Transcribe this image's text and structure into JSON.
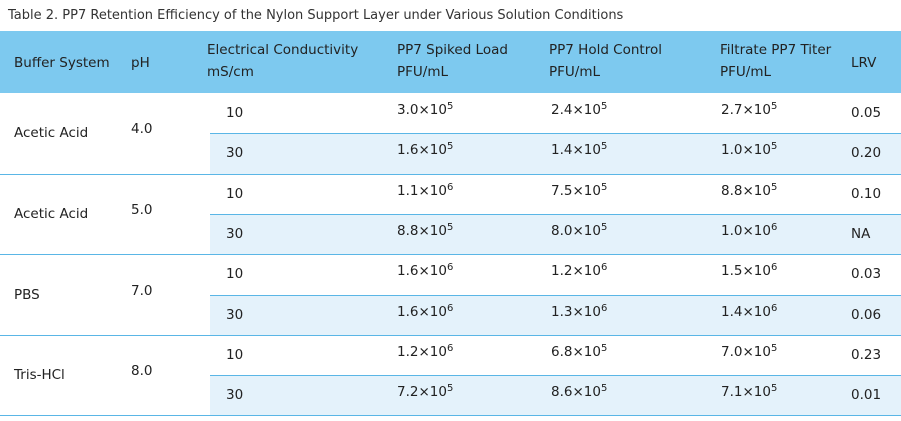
{
  "title": "Table 2. PP7 Retention Efficiency of the Nylon Support Layer under Various Solution Conditions",
  "table": {
    "header": [
      [
        "Buffer System"
      ],
      [
        "pH"
      ],
      [
        "Electrical Conductivity",
        "mS/cm"
      ],
      [
        "PP7 Spiked Load",
        "PFU/mL"
      ],
      [
        "PP7 Hold Control",
        "PFU/mL"
      ],
      [
        "Filtrate PP7 Titer",
        "PFU/mL"
      ],
      [
        "LRV"
      ]
    ],
    "groups": [
      {
        "buffer": "Acetic Acid",
        "ph": "4.0",
        "rows": [
          {
            "conductivity": "10",
            "spiked": {
              "base": "3.0×10",
              "exp": "5"
            },
            "hold": {
              "base": "2.4×10",
              "exp": "5"
            },
            "filtrate": {
              "base": "2.7×10",
              "exp": "5"
            },
            "lrv": "0.05"
          },
          {
            "conductivity": "30",
            "spiked": {
              "base": "1.6×10",
              "exp": "5"
            },
            "hold": {
              "base": "1.4×10",
              "exp": "5"
            },
            "filtrate": {
              "base": "1.0×10",
              "exp": "5"
            },
            "lrv": "0.20"
          }
        ]
      },
      {
        "buffer": "Acetic Acid",
        "ph": "5.0",
        "rows": [
          {
            "conductivity": "10",
            "spiked": {
              "base": "1.1×10",
              "exp": "6"
            },
            "hold": {
              "base": "7.5×10",
              "exp": "5"
            },
            "filtrate": {
              "base": "8.8×10",
              "exp": "5"
            },
            "lrv": "0.10"
          },
          {
            "conductivity": "30",
            "spiked": {
              "base": "8.8×10",
              "exp": "5"
            },
            "hold": {
              "base": "8.0×10",
              "exp": "5"
            },
            "filtrate": {
              "base": "1.0×10",
              "exp": "6"
            },
            "lrv": "NA"
          }
        ]
      },
      {
        "buffer": "PBS",
        "ph": "7.0",
        "rows": [
          {
            "conductivity": "10",
            "spiked": {
              "base": "1.6×10",
              "exp": "6"
            },
            "hold": {
              "base": "1.2×10",
              "exp": "6"
            },
            "filtrate": {
              "base": "1.5×10",
              "exp": "6"
            },
            "lrv": "0.03"
          },
          {
            "conductivity": "30",
            "spiked": {
              "base": "1.6×10",
              "exp": "6"
            },
            "hold": {
              "base": "1.3×10",
              "exp": "6"
            },
            "filtrate": {
              "base": "1.4×10",
              "exp": "6"
            },
            "lrv": "0.06"
          }
        ]
      },
      {
        "buffer": "Tris-HCl",
        "ph": "8.0",
        "rows": [
          {
            "conductivity": "10",
            "spiked": {
              "base": "1.2×10",
              "exp": "6"
            },
            "hold": {
              "base": "6.8×10",
              "exp": "5"
            },
            "filtrate": {
              "base": "7.0×10",
              "exp": "5"
            },
            "lrv": "0.23"
          },
          {
            "conductivity": "30",
            "spiked": {
              "base": "7.2×10",
              "exp": "5"
            },
            "hold": {
              "base": "8.6×10",
              "exp": "5"
            },
            "filtrate": {
              "base": "7.1×10",
              "exp": "5"
            },
            "lrv": "0.01"
          }
        ]
      }
    ]
  }
}
